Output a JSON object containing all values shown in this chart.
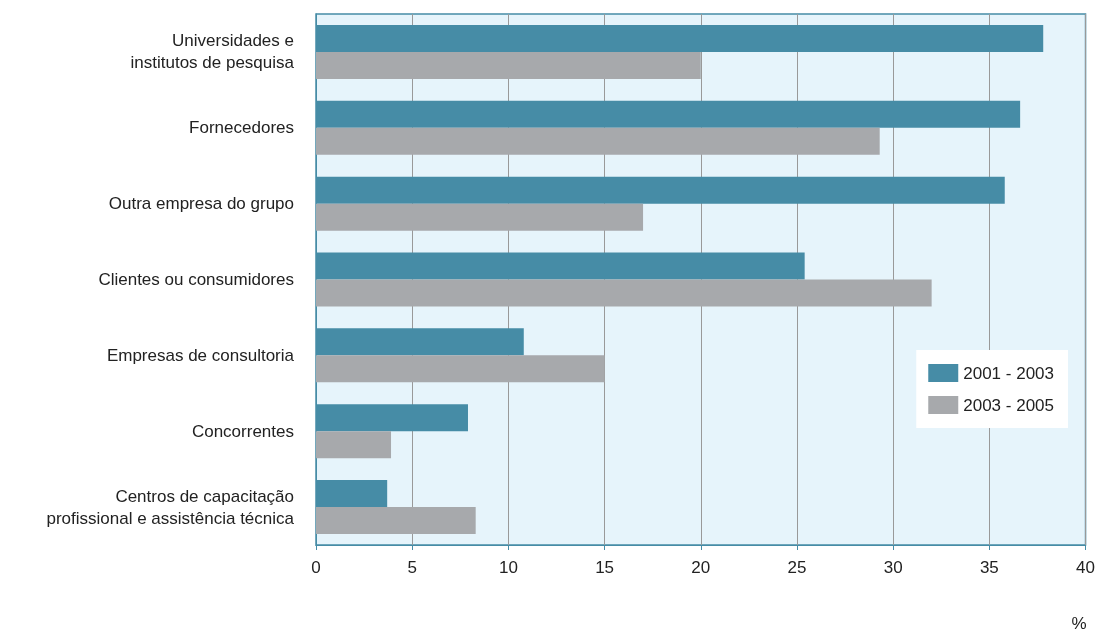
{
  "chart_data": {
    "type": "bar",
    "orientation": "horizontal",
    "xlabel": "%",
    "categories": [
      "Universidades e\ninstitutos de pesquisa",
      "Fornecedores",
      "Outra empresa do grupo",
      "Clientes ou consumidores",
      "Empresas de consultoria",
      "Concorrentes",
      "Centros de capacitação\nprofissional e assistência técnica"
    ],
    "series": [
      {
        "name": "2001 - 2003",
        "color": "#468ca6",
        "values": [
          37.8,
          36.6,
          35.8,
          25.4,
          10.8,
          7.9,
          3.7
        ]
      },
      {
        "name": "2003 - 2005",
        "color": "#a7a9ac",
        "values": [
          20.0,
          29.3,
          17.0,
          32.0,
          15.0,
          3.9,
          8.3
        ]
      }
    ],
    "xlim": [
      0,
      40
    ],
    "xticks": [
      0,
      5,
      10,
      15,
      20,
      25,
      30,
      35,
      40
    ],
    "grid": "x",
    "legend": "right"
  }
}
